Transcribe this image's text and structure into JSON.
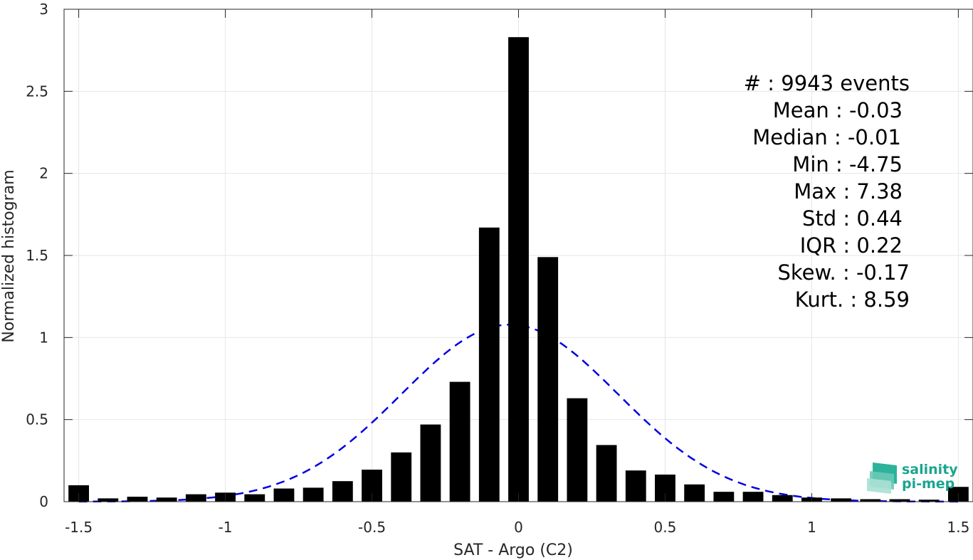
{
  "chart_data": {
    "type": "bar",
    "xlabel": "SAT - Argo (C2)",
    "ylabel": "Normalized histogram",
    "xlim": [
      -1.55,
      1.55
    ],
    "ylim": [
      0,
      3
    ],
    "grid": true,
    "x_ticks": [
      "-1.5",
      "-1",
      "-0.5",
      "0",
      "0.5",
      "1",
      "1.5"
    ],
    "x_tick_values": [
      -1.5,
      -1,
      -0.5,
      0,
      0.5,
      1,
      1.5
    ],
    "y_ticks": [
      "0",
      "0.5",
      "1",
      "1.5",
      "2",
      "2.5",
      "3"
    ],
    "y_tick_values": [
      0,
      0.5,
      1,
      1.5,
      2,
      2.5,
      3
    ],
    "bar_width": 0.07,
    "bins": [
      -1.5,
      -1.4,
      -1.3,
      -1.2,
      -1.1,
      -1.0,
      -0.9,
      -0.8,
      -0.7,
      -0.6,
      -0.5,
      -0.4,
      -0.3,
      -0.2,
      -0.1,
      0.0,
      0.1,
      0.2,
      0.3,
      0.4,
      0.5,
      0.6,
      0.7,
      0.8,
      0.9,
      1.0,
      1.1,
      1.2,
      1.3,
      1.4,
      1.5
    ],
    "values": [
      0.1,
      0.02,
      0.03,
      0.025,
      0.045,
      0.055,
      0.045,
      0.08,
      0.085,
      0.125,
      0.195,
      0.3,
      0.47,
      0.73,
      1.67,
      2.83,
      1.49,
      0.63,
      0.345,
      0.19,
      0.165,
      0.105,
      0.06,
      0.06,
      0.04,
      0.025,
      0.02,
      0.015,
      0.015,
      0.012,
      0.09
    ],
    "bar_color": "#000000",
    "fit": {
      "type": "gaussian",
      "mean": -0.03,
      "std": 0.37,
      "color": "#0000e0",
      "style": "dashed"
    },
    "stats": [
      "#  : 9943 events",
      "Mean : -0.03",
      "Median : -0.01",
      "Min : -4.75",
      "Max : 7.38",
      "Std : 0.44",
      "IQR : 0.22",
      "Skew. : -0.17",
      "Kurt. : 8.59"
    ]
  },
  "logo": {
    "line1": "salinity",
    "line2": "pi-mep",
    "color": "#1aa58f"
  }
}
